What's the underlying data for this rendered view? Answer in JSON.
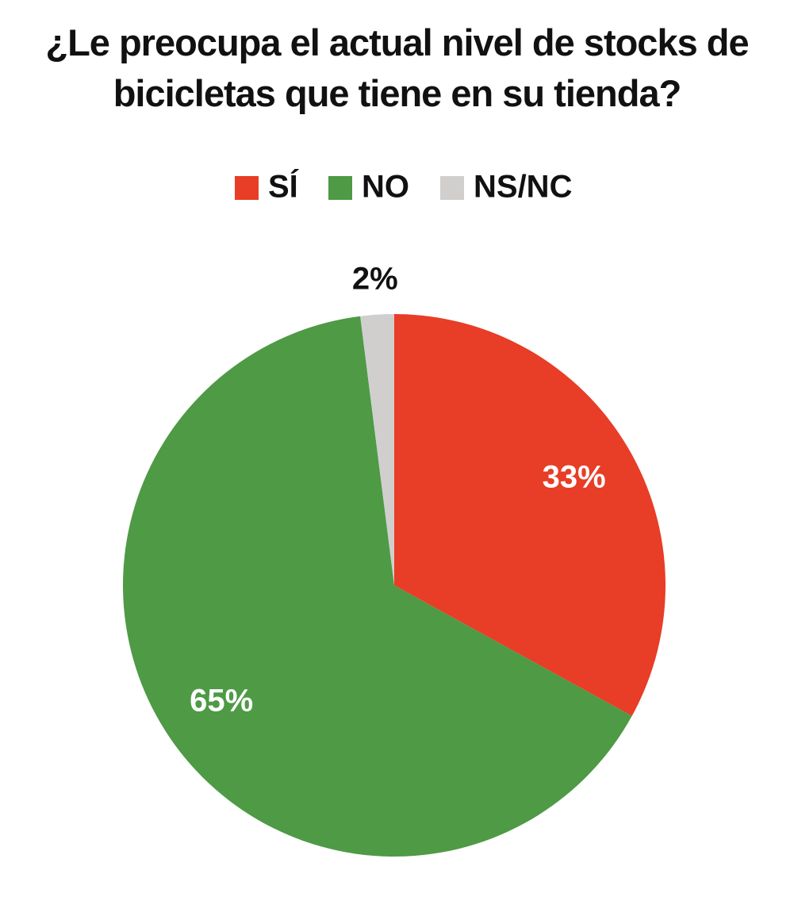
{
  "chart_data": {
    "type": "pie",
    "title": "¿Le preocupa el actual nivel de stocks de bicicletas que tiene en su tienda?",
    "categories": [
      "SÍ",
      "NO",
      "NS/NC"
    ],
    "values": [
      33,
      65,
      2
    ],
    "value_labels": [
      "33%",
      "65%",
      "2%"
    ],
    "colors": [
      "#e83d26",
      "#4e9a45",
      "#d0cfce"
    ]
  }
}
